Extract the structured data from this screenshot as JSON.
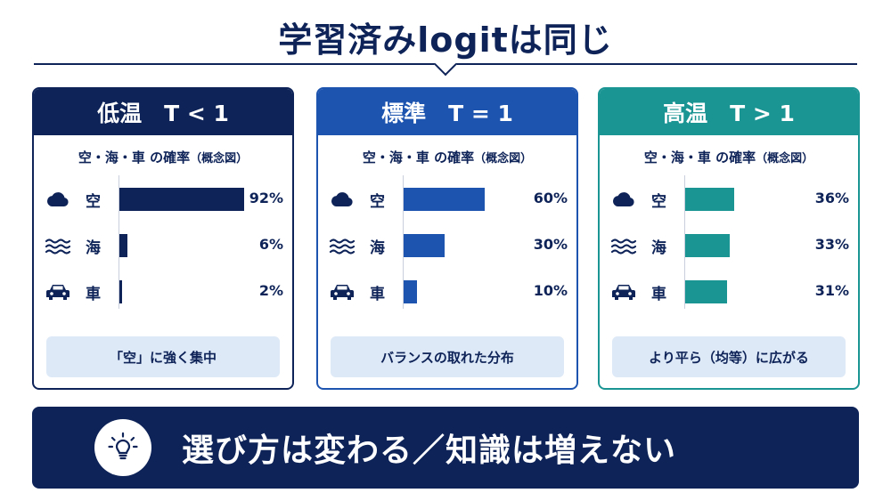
{
  "title": "学習済みlogitは同じ",
  "chart_data": [
    {
      "type": "bar",
      "title": "低温　T < 1",
      "subtitle": "空・海・車 の確率",
      "subtitle_note": "（概念図）",
      "categories": [
        "空",
        "海",
        "車"
      ],
      "values": [
        92,
        6,
        2
      ],
      "value_labels": [
        "92%",
        "6%",
        "2%"
      ],
      "xlim": [
        0,
        100
      ],
      "color": "#0e2358",
      "caption": "「空」に強く集中"
    },
    {
      "type": "bar",
      "title": "標準　T = 1",
      "subtitle": "空・海・車 の確率",
      "subtitle_note": "（概念図）",
      "categories": [
        "空",
        "海",
        "車"
      ],
      "values": [
        60,
        30,
        10
      ],
      "value_labels": [
        "60%",
        "30%",
        "10%"
      ],
      "xlim": [
        0,
        100
      ],
      "color": "#1d54b0",
      "caption": "バランスの取れた分布"
    },
    {
      "type": "bar",
      "title": "高温　T > 1",
      "subtitle": "空・海・車 の確率",
      "subtitle_note": "（概念図）",
      "categories": [
        "空",
        "海",
        "車"
      ],
      "values": [
        36,
        33,
        31
      ],
      "value_labels": [
        "36%",
        "33%",
        "31%"
      ],
      "xlim": [
        0,
        100
      ],
      "color": "#1b9494",
      "caption": "より平ら（均等）に広がる"
    }
  ],
  "category_icons": [
    "cloud-icon",
    "waves-icon",
    "car-icon"
  ],
  "footer": {
    "icon": "lightbulb-icon",
    "text": "選び方は変わる／知識は増えない"
  },
  "colors": {
    "navy": "#0e2358",
    "blue": "#1d54b0",
    "teal": "#1b9494",
    "caption_bg": "#dde9f7"
  }
}
